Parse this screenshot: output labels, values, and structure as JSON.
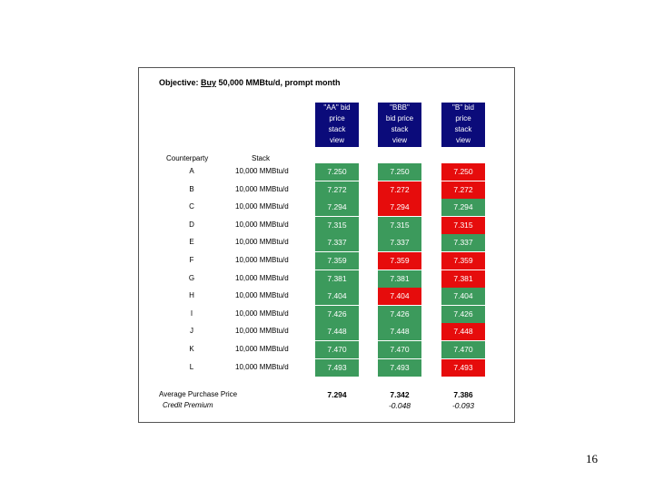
{
  "objective": {
    "prefix": "Objective: ",
    "verb": "Buy",
    "rest": " 50,000 MMBtu/d, prompt month"
  },
  "columns": [
    {
      "lines": [
        "\"AA\" bid",
        "price",
        "stack",
        "view"
      ]
    },
    {
      "lines": [
        "\"BBB\"",
        "bid price",
        "stack",
        "view"
      ]
    },
    {
      "lines": [
        "\"B\" bid",
        "price",
        "stack",
        "view"
      ]
    }
  ],
  "headers": {
    "counterparty": "Counterparty",
    "stack": "Stack"
  },
  "rows": [
    {
      "cp": "A",
      "stack": "10,000 MMBtu/d",
      "aa": "7.250",
      "bbb": "7.250",
      "b": "7.250"
    },
    {
      "cp": "B",
      "stack": "10,000 MMBtu/d",
      "aa": "7.272",
      "bbb": "7.272",
      "b": "7.272"
    },
    {
      "cp": "C",
      "stack": "10,000 MMBtu/d",
      "aa": "7.294",
      "bbb": "7.294",
      "b": "7.294"
    },
    {
      "cp": "D",
      "stack": "10,000 MMBtu/d",
      "aa": "7.315",
      "bbb": "7.315",
      "b": "7.315"
    },
    {
      "cp": "E",
      "stack": "10,000 MMBtu/d",
      "aa": "7.337",
      "bbb": "7.337",
      "b": "7.337"
    },
    {
      "cp": "F",
      "stack": "10,000 MMBtu/d",
      "aa": "7.359",
      "bbb": "7.359",
      "b": "7.359"
    },
    {
      "cp": "G",
      "stack": "10,000 MMBtu/d",
      "aa": "7.381",
      "bbb": "7.381",
      "b": "7.381"
    },
    {
      "cp": "H",
      "stack": "10,000 MMBtu/d",
      "aa": "7.404",
      "bbb": "7.404",
      "b": "7.404"
    },
    {
      "cp": "I",
      "stack": "10,000 MMBtu/d",
      "aa": "7.426",
      "bbb": "7.426",
      "b": "7.426"
    },
    {
      "cp": "J",
      "stack": "10,000 MMBtu/d",
      "aa": "7.448",
      "bbb": "7.448",
      "b": "7.448"
    },
    {
      "cp": "K",
      "stack": "10,000 MMBtu/d",
      "aa": "7.470",
      "bbb": "7.470",
      "b": "7.470"
    },
    {
      "cp": "L",
      "stack": "10,000 MMBtu/d",
      "aa": "7.493",
      "bbb": "7.493",
      "b": "7.493"
    }
  ],
  "cell_status": {
    "aa": [
      "g",
      "g",
      "g",
      "g",
      "g",
      "g",
      "g",
      "g",
      "g",
      "g",
      "g",
      "g"
    ],
    "bbb": [
      "g",
      "r",
      "r",
      "g",
      "g",
      "r",
      "g",
      "r",
      "g",
      "g",
      "g",
      "g"
    ],
    "b": [
      "r",
      "r",
      "g",
      "r",
      "g",
      "r",
      "r",
      "g",
      "g",
      "r",
      "g",
      "r"
    ]
  },
  "colors": {
    "header_bg": "#0b0b7a",
    "green": "#3c9a5c",
    "red": "#e60c0c"
  },
  "summary": {
    "avg_label": "Average Purchase Price",
    "premium_label": "Credit Premium",
    "avg": {
      "aa": "7.294",
      "bbb": "7.342",
      "b": "7.386"
    },
    "premium": {
      "bbb": "-0.048",
      "b": "-0.093"
    }
  },
  "page_number": "16"
}
